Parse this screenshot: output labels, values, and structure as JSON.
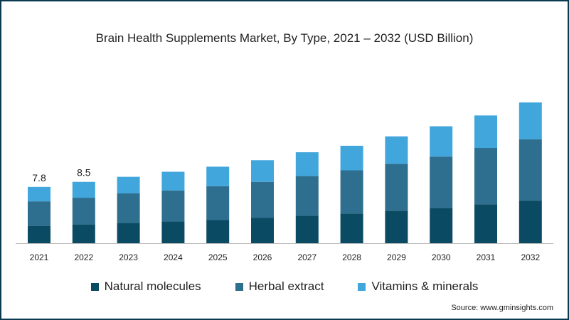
{
  "chart_data": {
    "type": "bar",
    "stacked": true,
    "title": "Brain Health Supplements Market, By Type, 2021 – 2032 (USD Billion)",
    "xlabel": "",
    "ylabel": "",
    "categories": [
      "2021",
      "2022",
      "2023",
      "2024",
      "2025",
      "2026",
      "2027",
      "2028",
      "2029",
      "2030",
      "2031",
      "2032"
    ],
    "series": [
      {
        "name": "Natural molecules",
        "color": "#0b4a63",
        "values": [
          2.4,
          2.6,
          2.8,
          3.0,
          3.2,
          3.5,
          3.8,
          4.1,
          4.5,
          4.9,
          5.4,
          5.9
        ]
      },
      {
        "name": "Herbal extract",
        "color": "#2e6e8e",
        "values": [
          3.4,
          3.7,
          4.1,
          4.3,
          4.7,
          5.0,
          5.5,
          6.0,
          6.5,
          7.1,
          7.8,
          8.5
        ]
      },
      {
        "name": "Vitamins & minerals",
        "color": "#41a6dc",
        "values": [
          2.0,
          2.2,
          2.3,
          2.6,
          2.7,
          3.0,
          3.3,
          3.4,
          3.8,
          4.2,
          4.5,
          5.1
        ]
      }
    ],
    "data_labels": [
      {
        "category": "2021",
        "text": "7.8"
      },
      {
        "category": "2022",
        "text": "8.5"
      }
    ],
    "ylim": [
      0,
      20
    ],
    "grid": false,
    "legend_position": "bottom"
  },
  "source": "Source: www.gminsights.com"
}
